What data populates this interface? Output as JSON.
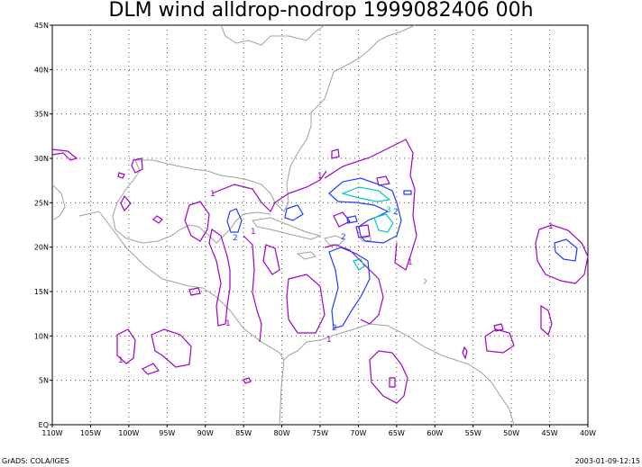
{
  "title": "DLM wind alldrop-nodrop 1999082406 00h",
  "x_ticks": [
    "110W",
    "105W",
    "100W",
    "95W",
    "90W",
    "85W",
    "80W",
    "75W",
    "70W",
    "65W",
    "60W",
    "55W",
    "50W",
    "45W",
    "40W"
  ],
  "y_ticks": [
    "45N",
    "40N",
    "35N",
    "30N",
    "25N",
    "20N",
    "15N",
    "10N",
    "5N",
    "EQ"
  ],
  "footer_left": "GrADS: COLA/IGES",
  "footer_right": "2003-01-09-12:15",
  "contour_labels": [
    "1",
    "2",
    "3"
  ],
  "colors": {
    "level1": "#a000c8",
    "level2": "#1e3cff",
    "level3": "#00c8c8",
    "coast": "#a0a0a0"
  }
}
